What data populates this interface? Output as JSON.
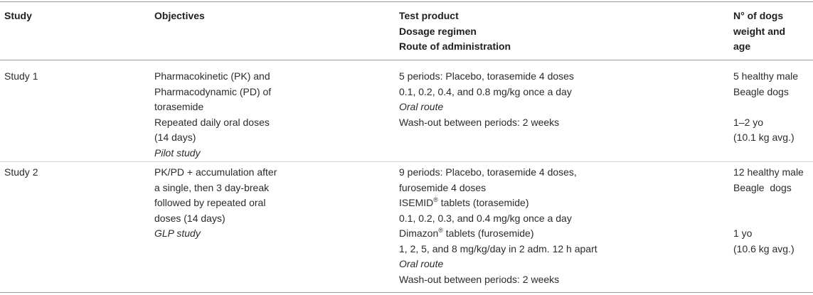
{
  "header": {
    "study": "Study",
    "objectives": "Objectives",
    "test_product": [
      "Test product",
      "Dosage regimen",
      "Route of administration"
    ],
    "dogs": [
      "N° of dogs",
      "weight and",
      "age"
    ]
  },
  "rows": [
    {
      "study": "Study 1",
      "objectives": [
        "Pharmacokinetic (PK) and",
        "Pharmacodynamic (PD) of",
        "torasemide",
        "Repeated daily oral doses",
        "(14 days)"
      ],
      "objectives_italic": "Pilot study",
      "test_product": {
        "l1": "5 periods: Placebo, torasemide 4 doses",
        "l2": "0.1, 0.2, 0.4, and 0.8 mg/kg once a day",
        "l3_italic": "Oral route",
        "l4": "Wash-out between periods: 2 weeks"
      },
      "dogs": {
        "l1": "5 healthy male",
        "l2": "Beagle dogs",
        "l3": "1–2 yo",
        "l4": "(10.1 kg avg.)"
      }
    },
    {
      "study": "Study 2",
      "objectives": [
        "PK/PD + accumulation after",
        "a single, then 3 day-break",
        "followed by repeated oral",
        "doses (14 days)"
      ],
      "objectives_italic": "GLP study",
      "test_product": {
        "l1": "9 periods: Placebo, torasemide 4 doses,",
        "l2": "furosemide 4 doses",
        "l3a": "ISEMID",
        "l3sup": "®",
        "l3b": " tablets (torasemide)",
        "l4": "0.1, 0.2, 0.3, and 0.4 mg/kg once a day",
        "l5a": "Dimazon",
        "l5sup": "®",
        "l5b": " tablets (furosemide)",
        "l6": "1, 2, 5, and 8 mg/kg/day in 2 adm. 12 h apart",
        "l7_italic": "Oral route",
        "l8": "Wash-out between periods: 2 weeks"
      },
      "dogs": {
        "l1": "12 healthy male",
        "l2": "Beagle  dogs",
        "l3": "1 yo",
        "l4": "(10.6 kg avg.)"
      }
    }
  ]
}
